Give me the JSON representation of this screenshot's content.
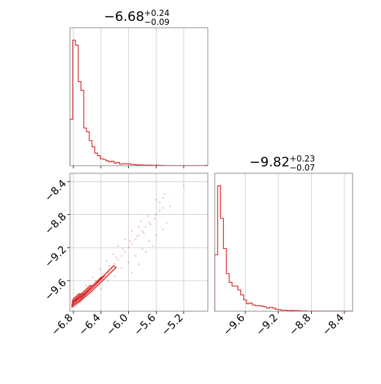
{
  "chart_data": [
    {
      "type": "histogram",
      "panel": "top-left",
      "title": {
        "median": "−6.68",
        "plus": "+0.24",
        "minus": "−0.09"
      },
      "xlim": [
        -6.85,
        -4.85
      ],
      "x_ticks": [
        -6.8,
        -6.4,
        -6.0,
        -5.6,
        -5.2
      ],
      "grid": true,
      "bins_x_start": -6.85,
      "bins_width": 0.04,
      "counts": [
        0.37,
        1.0,
        0.96,
        0.67,
        0.6,
        0.3,
        0.27,
        0.2,
        0.15,
        0.1,
        0.08,
        0.055,
        0.05,
        0.04,
        0.03,
        0.035,
        0.02,
        0.025,
        0.012,
        0.015,
        0.015,
        0.014,
        0.01,
        0.008,
        0.006,
        0.006,
        0.005,
        0.004,
        0.004,
        0.004,
        0.003,
        0.004,
        0.003,
        0.002,
        0.001,
        0.001,
        0.001,
        0.001,
        0.001,
        0.001,
        0.001,
        0.001,
        0.001,
        0.001,
        0.001,
        0.001,
        0.001,
        0.001,
        0.001,
        0.003
      ]
    },
    {
      "type": "histogram",
      "panel": "bottom-right",
      "title": {
        "median": "−9.82",
        "plus": "+0.23",
        "minus": "−0.07"
      },
      "xlim": [
        -9.97,
        -8.3
      ],
      "x_ticks": [
        -9.6,
        -9.2,
        -8.8,
        -8.4
      ],
      "grid": true,
      "bins_x_start": -9.97,
      "bins_width": 0.035,
      "counts": [
        0.45,
        1.0,
        0.74,
        0.5,
        0.3,
        0.23,
        0.2,
        0.2,
        0.17,
        0.13,
        0.09,
        0.06,
        0.065,
        0.05,
        0.045,
        0.045,
        0.04,
        0.035,
        0.025,
        0.032,
        0.025,
        0.015,
        0.012,
        0.008,
        0.008,
        0.005,
        0.006,
        0.005,
        0.005,
        0.004,
        0.002,
        0.002,
        0.001,
        0.001,
        0.001,
        0.001,
        0.001,
        0.001,
        0.001,
        0.001,
        0.001,
        0.001,
        0.001,
        0.001,
        0.001,
        0.001,
        0.001,
        0.001
      ]
    },
    {
      "type": "scatter",
      "panel": "bottom-left",
      "description": "2D posterior: x vs y, with density contours near lower-left",
      "xlim": [
        -6.85,
        -4.85
      ],
      "ylim": [
        -9.97,
        -8.3
      ],
      "x_ticks": [
        -6.8,
        -6.4,
        -6.0,
        -5.6,
        -5.2
      ],
      "y_ticks": [
        -8.4,
        -8.8,
        -9.2,
        -9.6
      ],
      "grid": true,
      "points": [
        [
          -6.65,
          -9.78
        ],
        [
          -6.6,
          -9.74
        ],
        [
          -6.55,
          -9.7
        ],
        [
          -6.5,
          -9.66
        ],
        [
          -6.45,
          -9.62
        ],
        [
          -6.4,
          -9.58
        ],
        [
          -6.35,
          -9.54
        ],
        [
          -6.3,
          -9.5
        ],
        [
          -6.25,
          -9.45
        ],
        [
          -6.2,
          -9.4
        ],
        [
          -6.15,
          -9.35
        ],
        [
          -6.1,
          -9.3
        ],
        [
          -6.05,
          -9.25
        ],
        [
          -6.0,
          -9.2
        ],
        [
          -5.95,
          -9.15
        ],
        [
          -5.9,
          -9.1
        ],
        [
          -5.85,
          -9.05
        ],
        [
          -5.8,
          -9.0
        ],
        [
          -5.75,
          -8.95
        ],
        [
          -5.7,
          -8.9
        ],
        [
          -5.6,
          -8.8
        ],
        [
          -5.55,
          -8.75
        ],
        [
          -5.5,
          -8.72
        ],
        [
          -5.62,
          -8.85
        ],
        [
          -5.68,
          -8.92
        ],
        [
          -5.78,
          -9.02
        ],
        [
          -5.88,
          -9.06
        ],
        [
          -5.98,
          -9.12
        ],
        [
          -6.08,
          -9.22
        ],
        [
          -6.18,
          -9.32
        ],
        [
          -6.28,
          -9.42
        ],
        [
          -6.38,
          -9.52
        ],
        [
          -6.48,
          -9.6
        ],
        [
          -6.58,
          -9.7
        ],
        [
          -6.68,
          -9.8
        ],
        [
          -6.1,
          -9.45
        ],
        [
          -6.0,
          -9.38
        ],
        [
          -5.9,
          -9.3
        ],
        [
          -5.8,
          -9.22
        ],
        [
          -5.7,
          -9.12
        ],
        [
          -5.6,
          -9.05
        ],
        [
          -5.5,
          -8.98
        ],
        [
          -6.2,
          -9.55
        ],
        [
          -5.75,
          -9.25
        ],
        [
          -5.65,
          -9.18
        ],
        [
          -6.3,
          -9.6
        ],
        [
          -6.4,
          -9.7
        ],
        [
          -5.85,
          -9.4
        ],
        [
          -5.95,
          -9.5
        ],
        [
          -5.55,
          -8.65
        ],
        [
          -5.5,
          -8.6
        ],
        [
          -5.48,
          -8.55
        ],
        [
          -5.6,
          -8.62
        ],
        [
          -5.2,
          -8.45
        ],
        [
          -5.45,
          -8.9
        ],
        [
          -5.4,
          -8.7
        ],
        [
          -6.05,
          -9.1
        ],
        [
          -5.95,
          -9.0
        ],
        [
          -6.15,
          -9.18
        ],
        [
          -5.85,
          -8.95
        ],
        [
          -5.72,
          -8.82
        ],
        [
          -5.82,
          -8.88
        ],
        [
          -6.22,
          -9.28
        ],
        [
          -6.32,
          -9.36
        ],
        [
          -6.42,
          -9.46
        ],
        [
          -6.52,
          -9.56
        ],
        [
          -6.62,
          -9.66
        ],
        [
          -6.72,
          -9.76
        ],
        [
          -6.76,
          -9.82
        ],
        [
          -6.7,
          -9.86
        ]
      ],
      "contours": [
        [
          [
            -6.82,
            -9.92
          ],
          [
            -6.72,
            -9.86
          ],
          [
            -6.55,
            -9.74
          ],
          [
            -6.4,
            -9.62
          ],
          [
            -6.28,
            -9.52
          ],
          [
            -6.18,
            -9.44
          ],
          [
            -6.22,
            -9.42
          ],
          [
            -6.36,
            -9.54
          ],
          [
            -6.52,
            -9.66
          ],
          [
            -6.68,
            -9.78
          ],
          [
            -6.82,
            -9.88
          ]
        ],
        [
          [
            -6.82,
            -9.9
          ],
          [
            -6.7,
            -9.83
          ],
          [
            -6.56,
            -9.72
          ],
          [
            -6.44,
            -9.62
          ],
          [
            -6.36,
            -9.55
          ],
          [
            -6.4,
            -9.56
          ],
          [
            -6.52,
            -9.66
          ],
          [
            -6.66,
            -9.78
          ],
          [
            -6.8,
            -9.87
          ]
        ],
        [
          [
            -6.82,
            -9.88
          ],
          [
            -6.72,
            -9.81
          ],
          [
            -6.6,
            -9.73
          ],
          [
            -6.52,
            -9.66
          ],
          [
            -6.56,
            -9.66
          ],
          [
            -6.66,
            -9.74
          ],
          [
            -6.78,
            -9.84
          ]
        ],
        [
          [
            -6.82,
            -9.86
          ],
          [
            -6.74,
            -9.8
          ],
          [
            -6.68,
            -9.76
          ],
          [
            -6.72,
            -9.76
          ],
          [
            -6.8,
            -9.82
          ]
        ]
      ]
    }
  ],
  "colors": {
    "series": "#d62728",
    "grid": "#c8c8c8",
    "frame": "#888888"
  }
}
